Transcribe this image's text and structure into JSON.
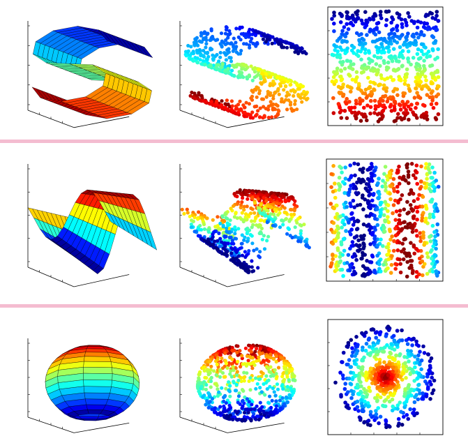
{
  "figure": {
    "background": "#ffffff",
    "separator_color": "#f4bcd0",
    "colormap": "jet",
    "marker_color": "#00008f"
  },
  "chart_data": [
    {
      "type": "surface",
      "row": 1,
      "column": 1,
      "shape": "s-curve",
      "view": "3d",
      "axes": "box",
      "grid": false,
      "title": "",
      "xlabel": "",
      "ylabel": "",
      "zlabel": ""
    },
    {
      "type": "scatter",
      "row": 1,
      "column": 2,
      "shape": "s-curve",
      "view": "3d",
      "axes": "box",
      "grid": false,
      "title": "",
      "xlabel": "",
      "ylabel": "",
      "zlabel": ""
    },
    {
      "type": "scatter",
      "row": 1,
      "column": 3,
      "shape": "s-curve-unrolled",
      "view": "2d-embedding",
      "axes": "box",
      "grid": false,
      "title": "",
      "xlabel": "",
      "ylabel": ""
    },
    {
      "type": "surface",
      "row": 2,
      "column": 1,
      "shape": "wave",
      "view": "3d",
      "axes": "box",
      "grid": false,
      "title": "",
      "xlabel": "",
      "ylabel": "",
      "zlabel": ""
    },
    {
      "type": "scatter",
      "row": 2,
      "column": 2,
      "shape": "wave",
      "view": "3d",
      "axes": "box",
      "grid": false,
      "title": "",
      "xlabel": "",
      "ylabel": "",
      "zlabel": ""
    },
    {
      "type": "scatter",
      "row": 2,
      "column": 3,
      "shape": "wave-unrolled",
      "view": "2d-embedding",
      "axes": "box",
      "grid": false,
      "title": "",
      "xlabel": "",
      "ylabel": ""
    },
    {
      "type": "surface",
      "row": 3,
      "column": 1,
      "shape": "open-sphere",
      "view": "3d",
      "axes": "box",
      "grid": false,
      "title": "",
      "xlabel": "",
      "ylabel": "",
      "zlabel": ""
    },
    {
      "type": "scatter",
      "row": 3,
      "column": 2,
      "shape": "open-sphere",
      "view": "3d",
      "axes": "box",
      "grid": false,
      "title": "",
      "xlabel": "",
      "ylabel": "",
      "zlabel": ""
    },
    {
      "type": "scatter",
      "row": 3,
      "column": 3,
      "shape": "open-sphere-unrolled",
      "view": "2d-embedding",
      "axes": "box",
      "grid": false,
      "title": "",
      "xlabel": "",
      "ylabel": ""
    }
  ]
}
